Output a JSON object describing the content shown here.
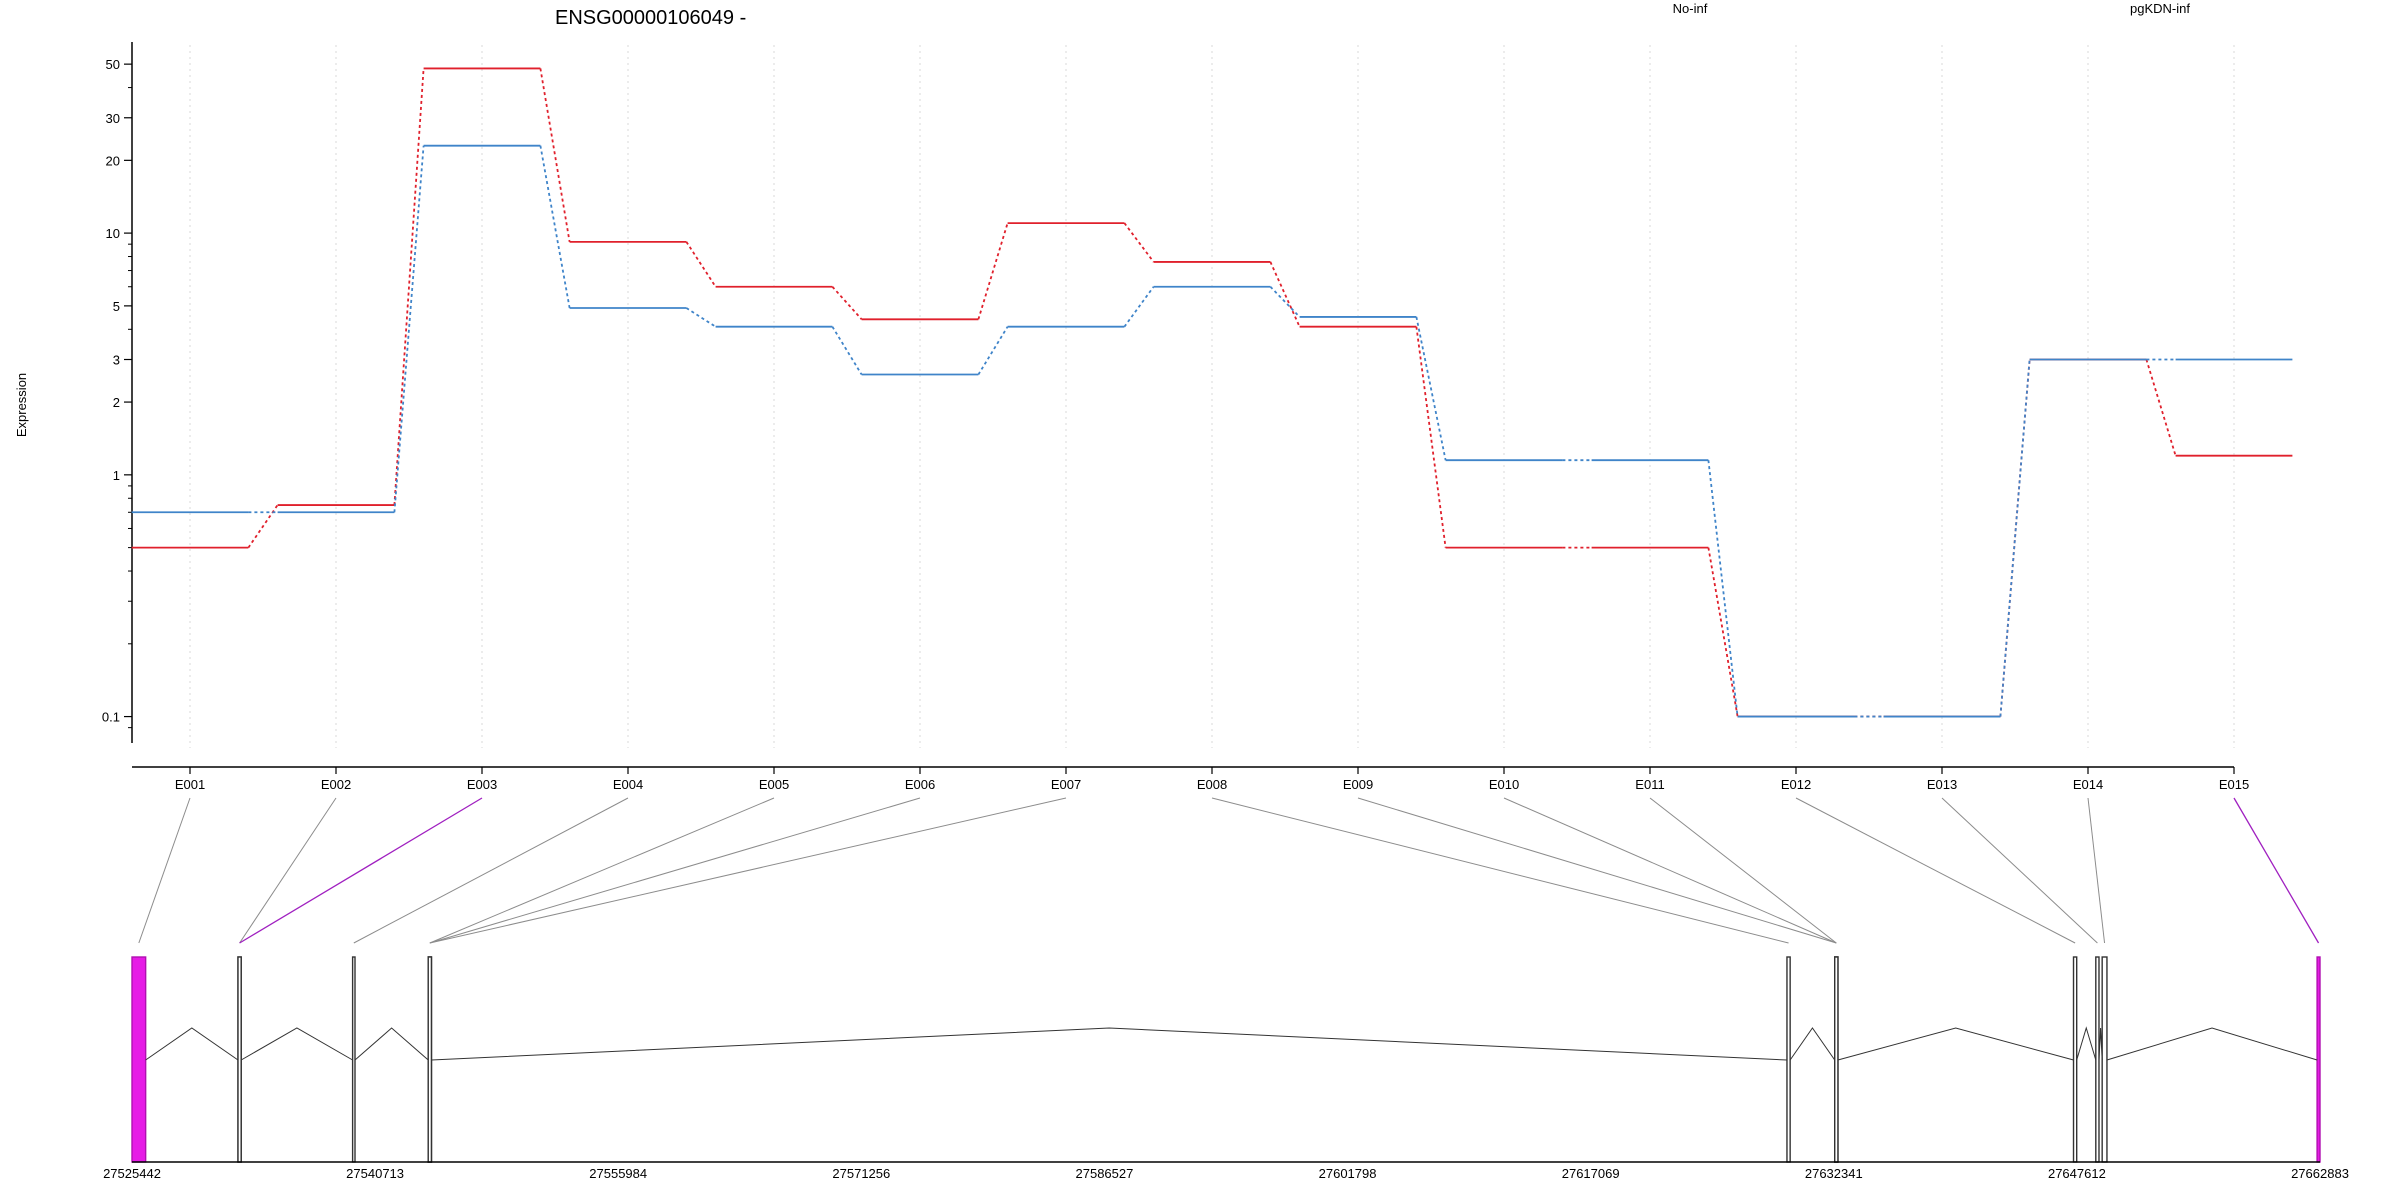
{
  "chart_data": {
    "type": "line",
    "title": "ENSG00000106049 -",
    "ylabel": "Expression",
    "y_scale": "log",
    "ylim": [
      0.08,
      60
    ],
    "y_ticks": [
      {
        "value": 0.1,
        "label": "0.1"
      },
      {
        "value": 1,
        "label": "1"
      },
      {
        "value": 2,
        "label": "2"
      },
      {
        "value": 3,
        "label": "3"
      },
      {
        "value": 5,
        "label": "5"
      },
      {
        "value": 10,
        "label": "10"
      },
      {
        "value": 20,
        "label": "20"
      },
      {
        "value": 30,
        "label": "30"
      },
      {
        "value": 50,
        "label": "50"
      }
    ],
    "categories": [
      "E001",
      "E002",
      "E003",
      "E004",
      "E005",
      "E006",
      "E007",
      "E008",
      "E009",
      "E010",
      "E011",
      "E012",
      "E013",
      "E014",
      "E015"
    ],
    "series": [
      {
        "name": "No-inf",
        "color": "#e0202c",
        "values": [
          0.5,
          0.75,
          48,
          9.2,
          6,
          4.4,
          11,
          7.6,
          4.1,
          0.5,
          0.5,
          0.1,
          0.1,
          3,
          1.2
        ]
      },
      {
        "name": "pgKDN-inf",
        "color": "#3f84c9",
        "values": [
          0.7,
          0.7,
          23,
          4.9,
          4.1,
          2.6,
          4.1,
          6,
          4.5,
          1.15,
          1.15,
          0.1,
          0.1,
          3,
          3
        ]
      }
    ],
    "legend_position": "top",
    "grid": "vertical-dotted",
    "gene_model": {
      "genomic_ticks": [
        "27525442",
        "27540713",
        "27555984",
        "27571256",
        "27586527",
        "27601798",
        "27617069",
        "27632341",
        "27647612",
        "27662883"
      ],
      "exons": [
        {
          "id": "E001",
          "start": 27525442,
          "end": 27526300,
          "highlight": true
        },
        {
          "id": "E002",
          "start": 27532100,
          "end": 27532300,
          "highlight": false
        },
        {
          "id": "E003",
          "start": 27532100,
          "end": 27532300,
          "highlight": false
        },
        {
          "id": "E004",
          "start": 27539300,
          "end": 27539450,
          "highlight": false
        },
        {
          "id": "E005",
          "start": 27544050,
          "end": 27544250,
          "highlight": false
        },
        {
          "id": "E006",
          "start": 27544050,
          "end": 27544250,
          "highlight": false
        },
        {
          "id": "E007",
          "start": 27544050,
          "end": 27544250,
          "highlight": false
        },
        {
          "id": "E008",
          "start": 27629400,
          "end": 27629600,
          "highlight": false
        },
        {
          "id": "E009",
          "start": 27632400,
          "end": 27632600,
          "highlight": false
        },
        {
          "id": "E010",
          "start": 27632400,
          "end": 27632600,
          "highlight": false
        },
        {
          "id": "E011",
          "start": 27632400,
          "end": 27632600,
          "highlight": false
        },
        {
          "id": "E012",
          "start": 27647400,
          "end": 27647600,
          "highlight": false
        },
        {
          "id": "E013",
          "start": 27648800,
          "end": 27649000,
          "highlight": false
        },
        {
          "id": "E014",
          "start": 27649200,
          "end": 27649500,
          "highlight": false
        },
        {
          "id": "E015",
          "start": 27662700,
          "end": 27662883,
          "highlight": true
        }
      ],
      "highlight_color": "#e61be6",
      "highlighted_connectors": [
        "E003",
        "E015"
      ]
    }
  }
}
